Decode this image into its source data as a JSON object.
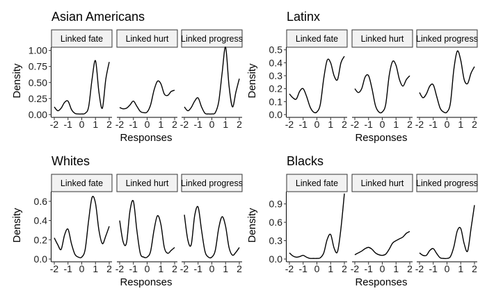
{
  "chart_data": [
    {
      "type": "line",
      "title": "Asian Americans",
      "xlabel": "Responses",
      "ylabel": "Density",
      "xlim": [
        -2,
        2
      ],
      "ylim": [
        0,
        1.05
      ],
      "x_ticks": [
        "-2",
        "-1",
        "0",
        "1",
        "2"
      ],
      "y_ticks": [
        "0.00",
        "0.25",
        "0.50",
        "0.75",
        "1.00"
      ],
      "y_tick_values": [
        0,
        0.25,
        0.5,
        0.75,
        1.0
      ],
      "facets": [
        "Linked fate",
        "Linked hurt",
        "Linked progress"
      ],
      "x": [
        -2.0,
        -1.75,
        -1.5,
        -1.25,
        -1.0,
        -0.75,
        -0.5,
        -0.25,
        0.0,
        0.25,
        0.5,
        0.75,
        1.0,
        1.25,
        1.5,
        1.75,
        2.0
      ],
      "series": [
        {
          "name": "Linked fate",
          "values": [
            0.12,
            0.06,
            0.1,
            0.19,
            0.21,
            0.08,
            0.02,
            0.01,
            0.01,
            0.02,
            0.12,
            0.55,
            0.84,
            0.35,
            0.1,
            0.55,
            0.82
          ]
        },
        {
          "name": "Linked hurt",
          "values": [
            0.11,
            0.09,
            0.1,
            0.15,
            0.21,
            0.13,
            0.05,
            0.03,
            0.04,
            0.15,
            0.38,
            0.52,
            0.48,
            0.32,
            0.3,
            0.36,
            0.38
          ]
        },
        {
          "name": "Linked progress",
          "values": [
            0.12,
            0.06,
            0.11,
            0.21,
            0.26,
            0.12,
            0.02,
            0.01,
            0.01,
            0.03,
            0.2,
            0.65,
            1.05,
            0.45,
            0.12,
            0.35,
            0.56
          ]
        }
      ]
    },
    {
      "type": "line",
      "title": "Latinx",
      "xlabel": "Responses",
      "ylabel": "Density",
      "xlim": [
        -2,
        2
      ],
      "ylim": [
        0,
        0.52
      ],
      "x_ticks": [
        "-2",
        "-1",
        "0",
        "1",
        "2"
      ],
      "y_ticks": [
        "0.0",
        "0.1",
        "0.2",
        "0.3",
        "0.4",
        "0.5"
      ],
      "y_tick_values": [
        0,
        0.1,
        0.2,
        0.3,
        0.4,
        0.5
      ],
      "facets": [
        "Linked fate",
        "Linked hurt",
        "Linked progress"
      ],
      "x": [
        -2.0,
        -1.75,
        -1.5,
        -1.25,
        -1.0,
        -0.75,
        -0.5,
        -0.25,
        0.0,
        0.25,
        0.5,
        0.75,
        1.0,
        1.25,
        1.5,
        1.75,
        2.0
      ],
      "series": [
        {
          "name": "Linked fate",
          "values": [
            0.16,
            0.13,
            0.12,
            0.18,
            0.2,
            0.14,
            0.06,
            0.02,
            0.02,
            0.08,
            0.28,
            0.42,
            0.4,
            0.3,
            0.27,
            0.4,
            0.45
          ]
        },
        {
          "name": "Linked hurt",
          "values": [
            0.2,
            0.17,
            0.2,
            0.29,
            0.3,
            0.2,
            0.07,
            0.02,
            0.02,
            0.08,
            0.3,
            0.41,
            0.38,
            0.27,
            0.22,
            0.27,
            0.3
          ]
        },
        {
          "name": "Linked progress",
          "values": [
            0.17,
            0.13,
            0.16,
            0.22,
            0.23,
            0.14,
            0.05,
            0.02,
            0.02,
            0.09,
            0.35,
            0.49,
            0.42,
            0.27,
            0.24,
            0.32,
            0.37
          ]
        }
      ]
    },
    {
      "type": "line",
      "title": "Whites",
      "xlabel": "Responses",
      "ylabel": "Density",
      "xlim": [
        -2,
        2
      ],
      "ylim": [
        0,
        0.7
      ],
      "x_ticks": [
        "-2",
        "-1",
        "0",
        "1",
        "2"
      ],
      "y_ticks": [
        "0.0",
        "0.2",
        "0.4",
        "0.6"
      ],
      "y_tick_values": [
        0,
        0.2,
        0.4,
        0.6
      ],
      "facets": [
        "Linked fate",
        "Linked hurt",
        "Linked progress"
      ],
      "x": [
        -2.0,
        -1.75,
        -1.5,
        -1.25,
        -1.0,
        -0.75,
        -0.5,
        -0.25,
        0.0,
        0.25,
        0.5,
        0.75,
        1.0,
        1.25,
        1.5,
        1.75,
        2.0
      ],
      "series": [
        {
          "name": "Linked fate",
          "values": [
            0.22,
            0.15,
            0.1,
            0.25,
            0.31,
            0.16,
            0.05,
            0.02,
            0.02,
            0.1,
            0.4,
            0.64,
            0.58,
            0.3,
            0.16,
            0.24,
            0.34
          ]
        },
        {
          "name": "Linked hurt",
          "values": [
            0.4,
            0.18,
            0.17,
            0.5,
            0.6,
            0.3,
            0.06,
            0.02,
            0.02,
            0.08,
            0.3,
            0.45,
            0.36,
            0.12,
            0.06,
            0.09,
            0.12
          ]
        },
        {
          "name": "Linked progress",
          "values": [
            0.46,
            0.2,
            0.15,
            0.45,
            0.54,
            0.3,
            0.08,
            0.02,
            0.02,
            0.09,
            0.32,
            0.44,
            0.34,
            0.12,
            0.04,
            0.07,
            0.12
          ]
        }
      ]
    },
    {
      "type": "line",
      "title": "Blacks",
      "xlabel": "Responses",
      "ylabel": "Density",
      "xlim": [
        -2,
        2
      ],
      "ylim": [
        0,
        1.1
      ],
      "x_ticks": [
        "-2",
        "-1",
        "0",
        "1",
        "2"
      ],
      "y_ticks": [
        "0.0",
        "0.3",
        "0.6",
        "0.9"
      ],
      "y_tick_values": [
        0,
        0.3,
        0.6,
        0.9
      ],
      "facets": [
        "Linked fate",
        "Linked hurt",
        "Linked progress"
      ],
      "x": [
        -2.0,
        -1.75,
        -1.5,
        -1.25,
        -1.0,
        -0.75,
        -0.5,
        -0.25,
        0.0,
        0.25,
        0.5,
        0.75,
        1.0,
        1.25,
        1.5,
        1.75,
        2.0
      ],
      "series": [
        {
          "name": "Linked fate",
          "values": [
            0.1,
            0.05,
            0.03,
            0.04,
            0.06,
            0.03,
            0.01,
            0.01,
            0.01,
            0.02,
            0.1,
            0.32,
            0.4,
            0.18,
            0.12,
            0.5,
            1.07
          ]
        },
        {
          "name": "Linked hurt",
          "values": [
            0.07,
            0.1,
            0.13,
            0.17,
            0.19,
            0.16,
            0.1,
            0.07,
            0.06,
            0.08,
            0.16,
            0.26,
            0.3,
            0.33,
            0.36,
            0.42,
            0.45
          ]
        },
        {
          "name": "Linked progress",
          "values": [
            0.1,
            0.06,
            0.06,
            0.14,
            0.17,
            0.09,
            0.02,
            0.01,
            0.01,
            0.04,
            0.2,
            0.46,
            0.5,
            0.25,
            0.13,
            0.5,
            0.88
          ]
        }
      ]
    }
  ]
}
